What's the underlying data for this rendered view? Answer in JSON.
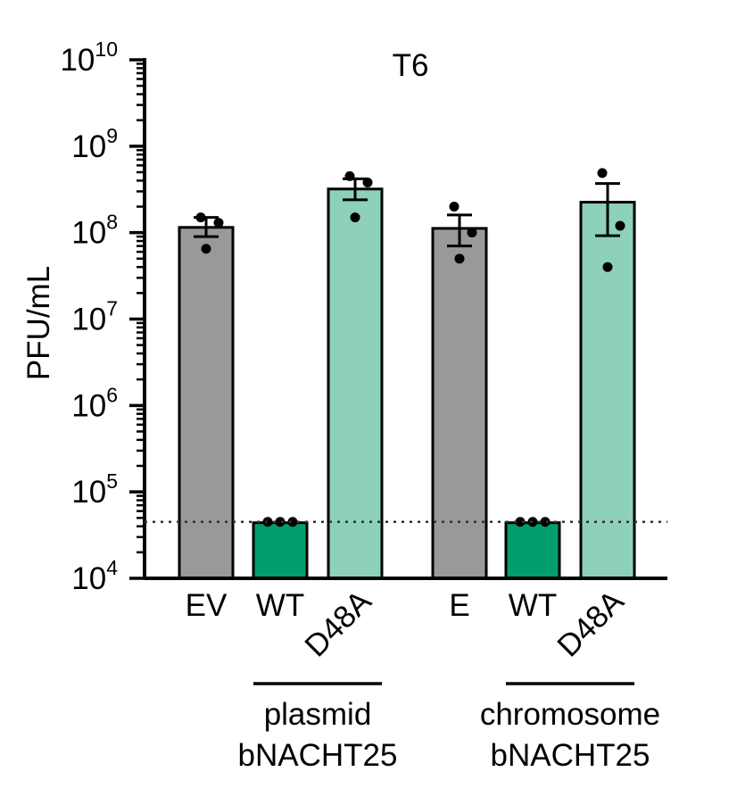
{
  "chart_data": {
    "type": "bar",
    "title": "T6",
    "ylabel": "PFU/mL",
    "xlabel": "",
    "y_scale": "log",
    "ylim": [
      10000,
      10000000000
    ],
    "y_ticks": [
      {
        "value": 10000,
        "base": "10",
        "exp": "4"
      },
      {
        "value": 100000,
        "base": "10",
        "exp": "5"
      },
      {
        "value": 1000000,
        "base": "10",
        "exp": "6"
      },
      {
        "value": 10000000,
        "base": "10",
        "exp": "7"
      },
      {
        "value": 100000000,
        "base": "10",
        "exp": "8"
      },
      {
        "value": 1000000000,
        "base": "10",
        "exp": "9"
      },
      {
        "value": 10000000000,
        "base": "10",
        "exp": "10"
      }
    ],
    "limit_of_detection": 45000,
    "bars": [
      {
        "label": "EV",
        "rotated": false,
        "value": 115000000,
        "error": [
          90000000,
          150000000
        ],
        "points": [
          150000000,
          130000000,
          65000000
        ],
        "color": "#999999"
      },
      {
        "label": "WT",
        "rotated": false,
        "value": 44000,
        "error": [
          44000,
          44000
        ],
        "points": [
          45000,
          45000,
          45000
        ],
        "color": "#009e6e"
      },
      {
        "label": "D48A",
        "rotated": true,
        "value": 320000000,
        "error": [
          240000000,
          420000000
        ],
        "points": [
          450000000,
          380000000,
          150000000
        ],
        "color": "#8ed1b9"
      },
      {
        "label": "E",
        "rotated": false,
        "value": 112000000,
        "error": [
          70000000,
          160000000
        ],
        "points": [
          200000000,
          100000000,
          50000000
        ],
        "color": "#999999"
      },
      {
        "label": "WT",
        "rotated": false,
        "value": 44000,
        "error": [
          44000,
          44000
        ],
        "points": [
          45000,
          45000,
          45000
        ],
        "color": "#009e6e"
      },
      {
        "label": "D48A",
        "rotated": true,
        "value": 225000000,
        "error": [
          92000000,
          370000000
        ],
        "points": [
          490000000,
          120000000,
          40000000
        ],
        "color": "#8ed1b9"
      }
    ],
    "groups": [
      {
        "line1": "plasmid",
        "line2": "bNACHT25",
        "bars": [
          1,
          2
        ]
      },
      {
        "line1": "chromosome",
        "line2": "bNACHT25",
        "bars": [
          4,
          5
        ]
      }
    ]
  }
}
